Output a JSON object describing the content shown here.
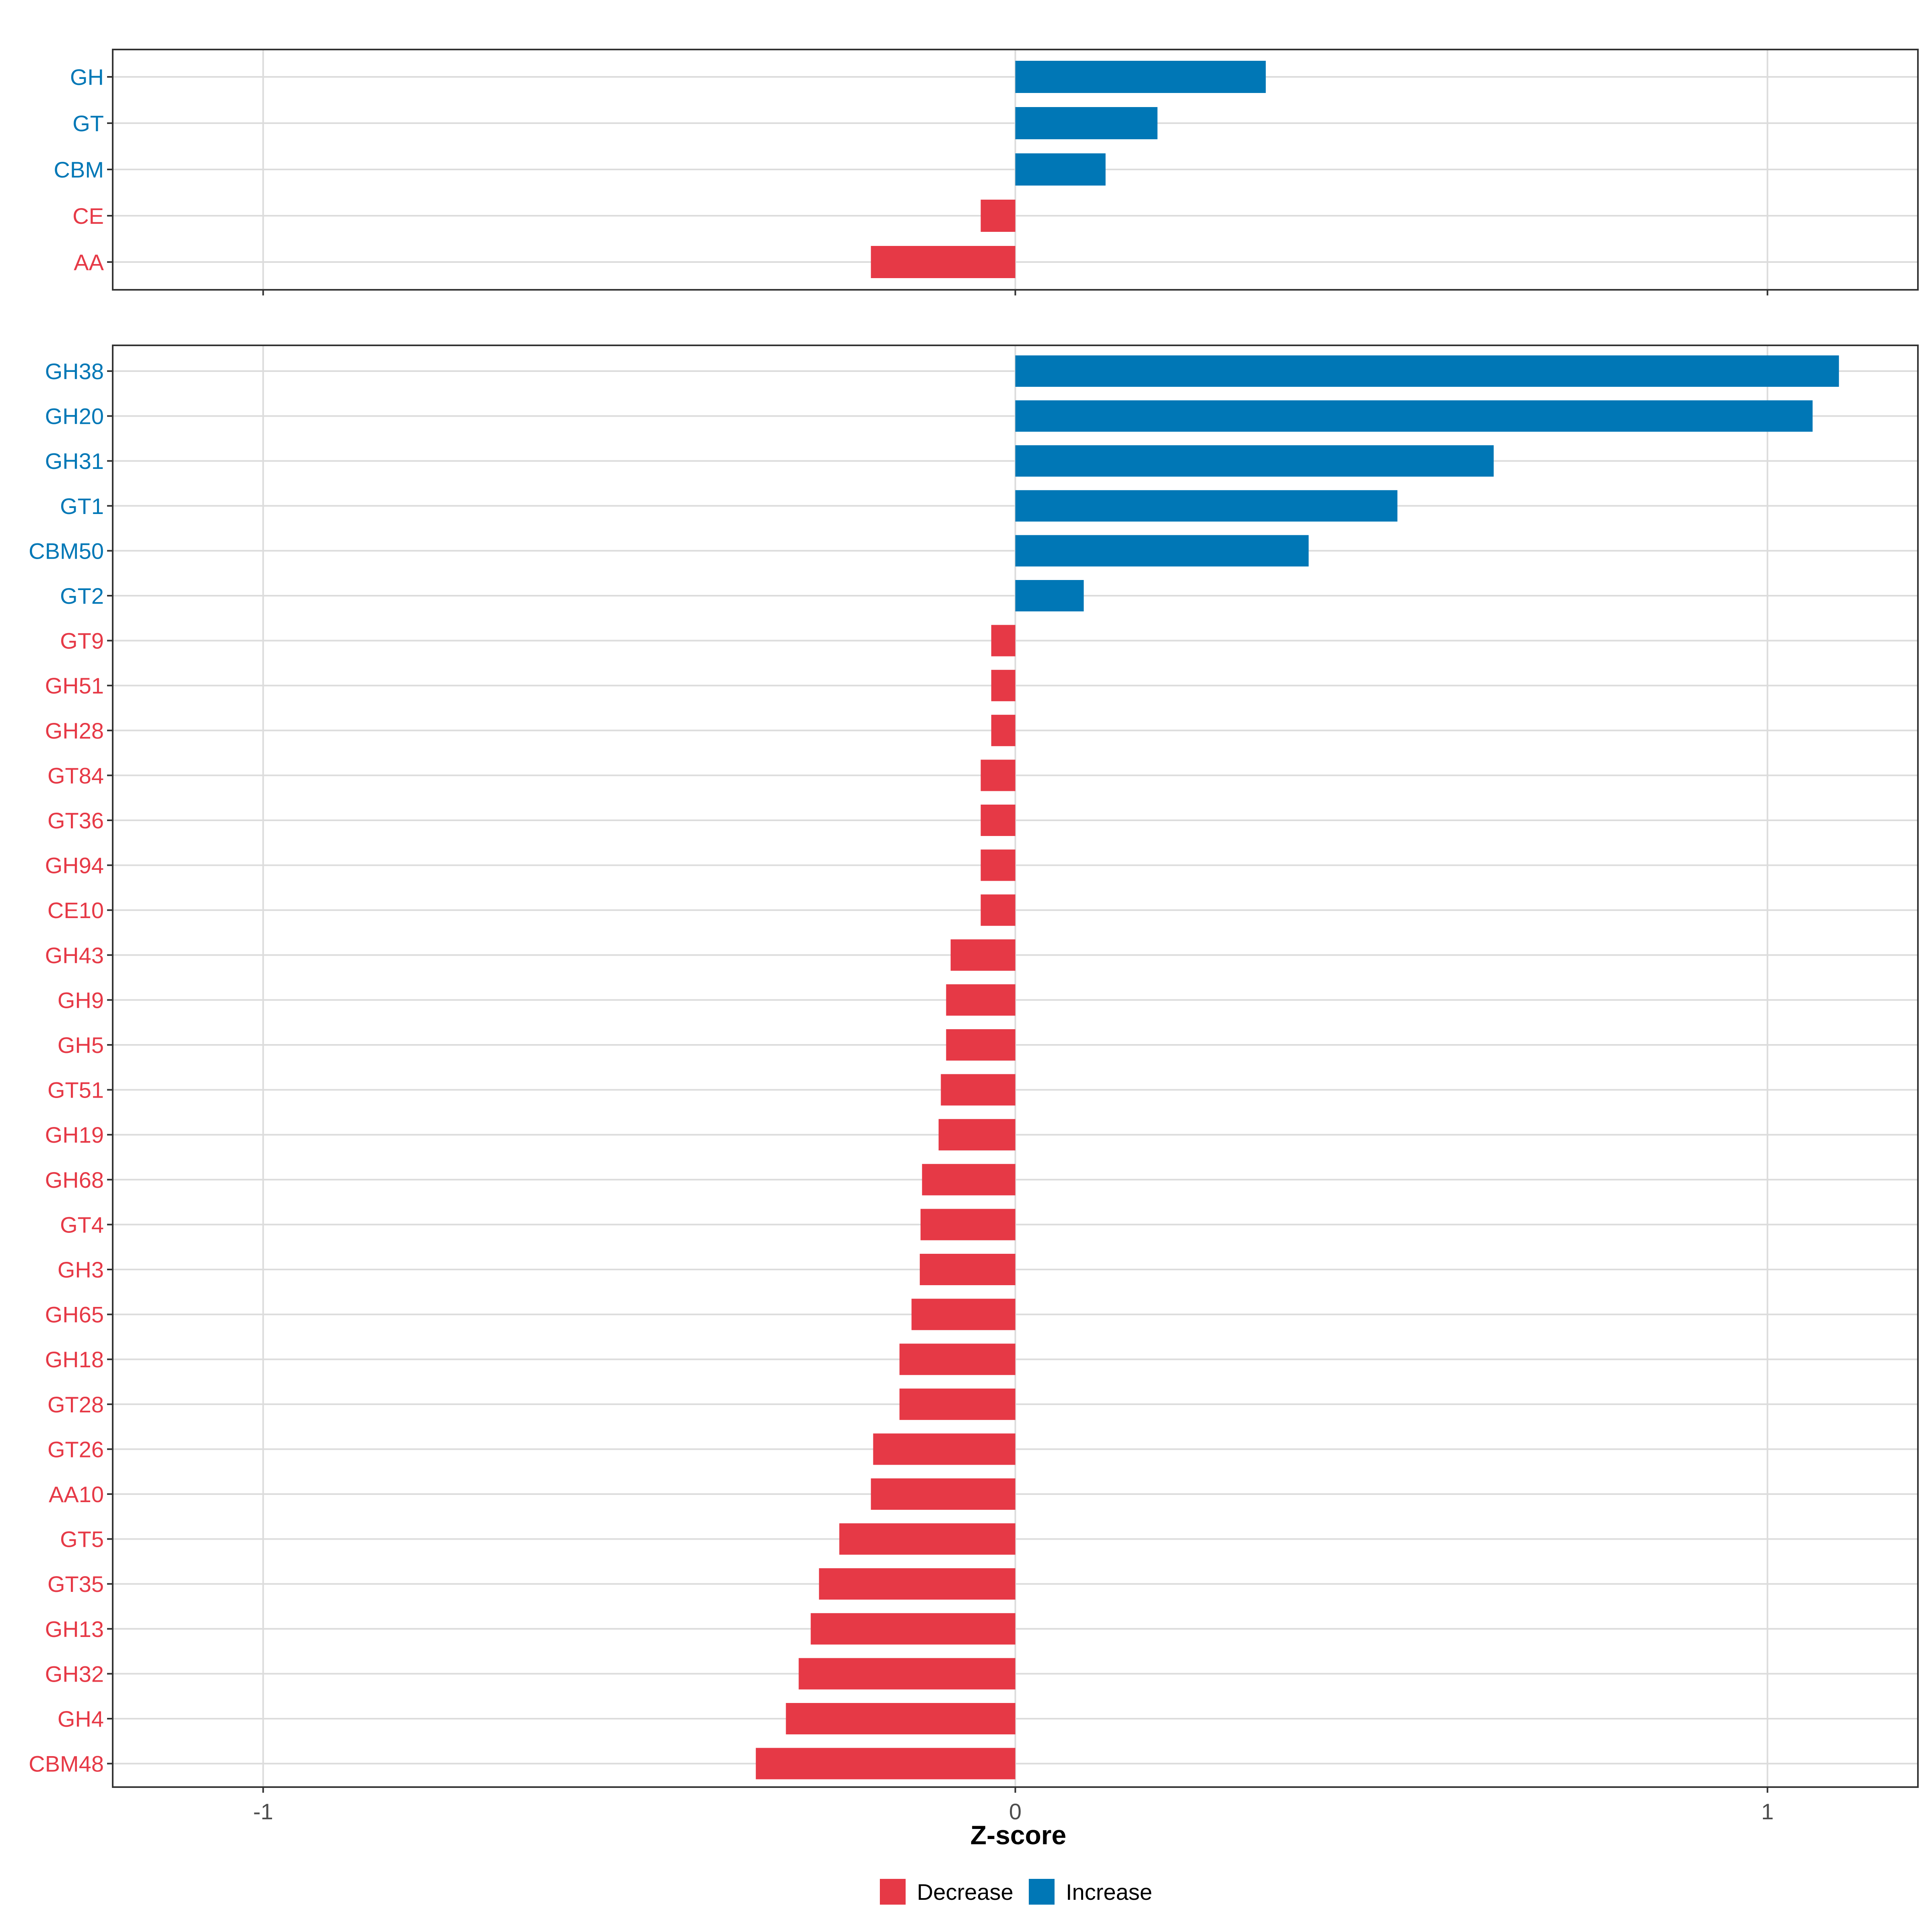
{
  "chart_data": {
    "type": "bar",
    "orientation": "horizontal",
    "xlabel": "Z-score",
    "xlim": [
      -1.2,
      1.2
    ],
    "xticks": [
      -1,
      0,
      1
    ],
    "xtick_labels": [
      "-1",
      "0",
      "1"
    ],
    "grid": true,
    "legend_position": "bottom",
    "legend": [
      {
        "name": "Decrease",
        "color": "#E63946"
      },
      {
        "name": "Increase",
        "color": "#0077B6"
      }
    ],
    "panels": [
      {
        "name": "families",
        "categories": [
          "GH",
          "GT",
          "CBM",
          "CE",
          "AA"
        ],
        "values": [
          0.333,
          0.189,
          0.12,
          -0.046,
          -0.192
        ]
      },
      {
        "name": "subfamilies",
        "categories": [
          "GH38",
          "GH20",
          "GH31",
          "GT1",
          "CBM50",
          "GT2",
          "GT9",
          "GH51",
          "GH28",
          "GT84",
          "GT36",
          "GH94",
          "CE10",
          "GH43",
          "GH9",
          "GH5",
          "GT51",
          "GH19",
          "GH68",
          "GT4",
          "GH3",
          "GH65",
          "GH18",
          "GT28",
          "GT26",
          "AA10",
          "GT5",
          "GT35",
          "GH13",
          "GH32",
          "GH4",
          "CBM48"
        ],
        "values": [
          1.095,
          1.06,
          0.636,
          0.508,
          0.39,
          0.091,
          -0.032,
          -0.032,
          -0.032,
          -0.046,
          -0.046,
          -0.046,
          -0.046,
          -0.086,
          -0.092,
          -0.092,
          -0.099,
          -0.102,
          -0.124,
          -0.126,
          -0.127,
          -0.138,
          -0.154,
          -0.154,
          -0.189,
          -0.192,
          -0.234,
          -0.261,
          -0.272,
          -0.288,
          -0.305,
          -0.345
        ]
      }
    ]
  }
}
